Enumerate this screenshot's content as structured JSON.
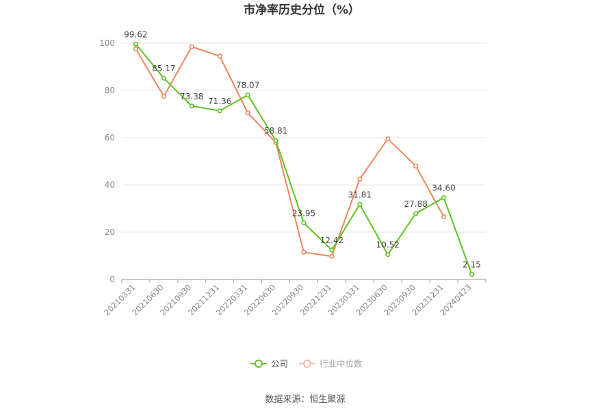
{
  "chart_data": {
    "type": "line",
    "title": "市净率历史分位（%）",
    "categories": [
      "20210331",
      "20210630",
      "20210930",
      "20211231",
      "20220331",
      "20220630",
      "20220930",
      "20221231",
      "20230331",
      "20230630",
      "20230930",
      "20231231",
      "20240423"
    ],
    "ylim": [
      0,
      100
    ],
    "yticks": [
      0,
      20,
      40,
      60,
      80,
      100
    ],
    "grid": true,
    "legend_position": "bottom",
    "series": [
      {
        "name": "公司",
        "color": "#5cc323",
        "values": [
          99.62,
          85.17,
          73.38,
          71.36,
          78.07,
          58.81,
          23.95,
          12.42,
          31.81,
          10.52,
          27.88,
          34.6,
          2.15
        ],
        "labels": [
          "99.62",
          "85.17",
          "73.38",
          "71.36",
          "78.07",
          "58.81",
          "23.95",
          "12.42",
          "31.81",
          "10.52",
          "27.88",
          "34.60",
          "2.15"
        ]
      },
      {
        "name": "行业中位数",
        "color": "#f0855a",
        "values": [
          97.5,
          77.5,
          98.5,
          94.5,
          70.5,
          58.0,
          11.5,
          9.8,
          42.5,
          59.5,
          48.0,
          26.5,
          null
        ]
      }
    ]
  },
  "source": "数据来源：恒生聚源"
}
